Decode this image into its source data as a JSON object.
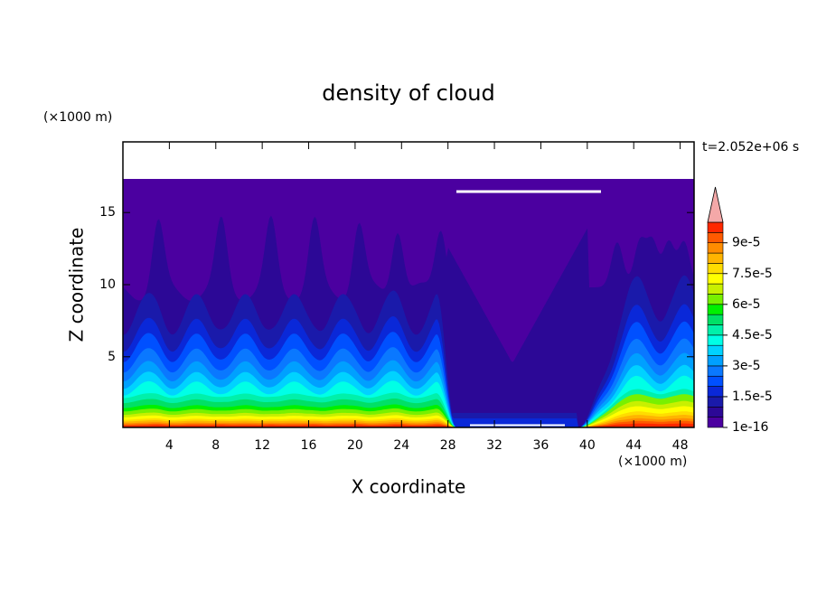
{
  "chart_data": {
    "type": "contour",
    "title": "density of cloud",
    "xlabel": "X coordinate",
    "ylabel": "Z coordinate",
    "x_unit": "(×1000 m)",
    "y_unit": "(×1000 m)",
    "time_label": "t=2.052e+06 s",
    "xlim": [
      0,
      49.2
    ],
    "ylim": [
      0.1,
      19.9
    ],
    "xticks": [
      4,
      8,
      12,
      16,
      20,
      24,
      28,
      32,
      36,
      40,
      44,
      48
    ],
    "yticks": [
      5,
      10,
      15
    ],
    "colorbar": {
      "lim": [
        0,
        0.0001
      ],
      "colors": [
        "#4b00a0",
        "#2c0896",
        "#1a1aaa",
        "#0a28d8",
        "#0050ff",
        "#0a78ff",
        "#00a0ff",
        "#00d2ff",
        "#00ffe6",
        "#00f0aa",
        "#00e066",
        "#00f000",
        "#78f000",
        "#c8f000",
        "#ffff00",
        "#ffdc00",
        "#ffb400",
        "#ff8c00",
        "#ff5a00",
        "#ff2800"
      ],
      "extend_color": "#f4a8a8",
      "ticks": [
        {
          "value": 1e-16,
          "label": "1e-16"
        },
        {
          "value": 1.5e-05,
          "label": "1.5e-5"
        },
        {
          "value": 3e-05,
          "label": "3e-5"
        },
        {
          "value": 4.5e-05,
          "label": "4.5e-5"
        },
        {
          "value": 6e-05,
          "label": "6e-5"
        },
        {
          "value": 7.5e-05,
          "label": "7.5e-5"
        },
        {
          "value": 9e-05,
          "label": "9e-5"
        }
      ]
    }
  }
}
